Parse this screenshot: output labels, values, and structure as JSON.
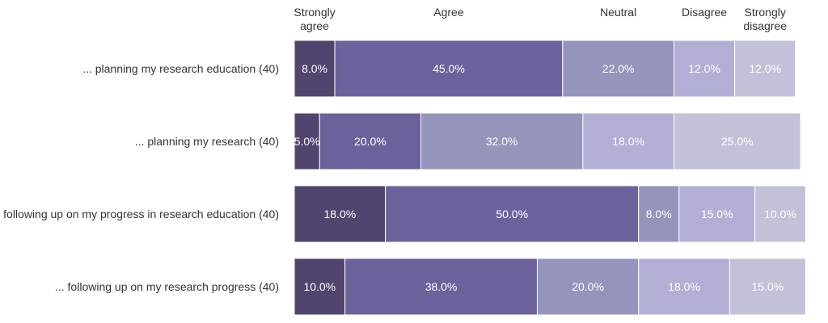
{
  "chart_data": {
    "type": "bar",
    "orientation": "horizontal",
    "stacked": true,
    "normalized": true,
    "title": "",
    "xlabel": "",
    "ylabel": "",
    "xlim": [
      0,
      100
    ],
    "grid": false,
    "legend_position": "top",
    "categories": [
      "... planning my research education (40)",
      "... planning my research (40)",
      "following up on my progress in research education (40)",
      "... following up on my research progress (40)"
    ],
    "series": [
      {
        "name": "Strongly agree",
        "color": "#51456f",
        "values": [
          8.0,
          5.0,
          18.0,
          10.0
        ],
        "labels": [
          "8.0%",
          "5.0%",
          "18.0%",
          "10.0%"
        ]
      },
      {
        "name": "Agree",
        "color": "#6b629c",
        "values": [
          45.0,
          20.0,
          50.0,
          38.0
        ],
        "labels": [
          "45.0%",
          "20.0%",
          "50.0%",
          "38.0%"
        ]
      },
      {
        "name": "Neutral",
        "color": "#9594bb",
        "values": [
          22.0,
          32.0,
          8.0,
          20.0
        ],
        "labels": [
          "22.0%",
          "32.0%",
          "8.0%",
          "20.0%"
        ]
      },
      {
        "name": "Disagree",
        "color": "#b1b0d4",
        "values": [
          12.0,
          18.0,
          15.0,
          18.0
        ],
        "labels": [
          "12.0%",
          "18.0%",
          "15.0%",
          "18.0%"
        ]
      },
      {
        "name": "Strongly disagree",
        "color": "#c1c1d8",
        "values": [
          12.0,
          25.0,
          10.0,
          15.0
        ],
        "labels": [
          "12.0%",
          "25.0%",
          "10.0%",
          "15.0%"
        ]
      }
    ]
  }
}
